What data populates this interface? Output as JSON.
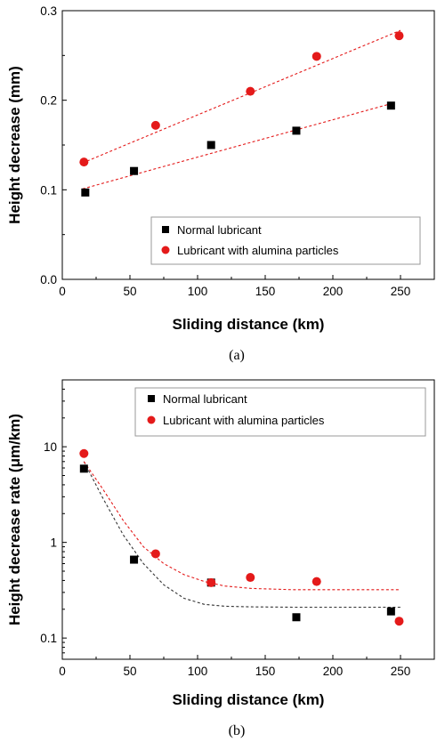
{
  "chart_data": [
    {
      "type": "scatter",
      "panel_label": "(a)",
      "xlabel": "Sliding distance (km)",
      "ylabel": "Height decrease (mm)",
      "xlim": [
        0,
        275
      ],
      "ylim": [
        0,
        0.3
      ],
      "x_ticks": [
        "0",
        "50",
        "100",
        "150",
        "200",
        "250"
      ],
      "y_ticks": [
        "0.0",
        "0.1",
        "0.2",
        "0.3"
      ],
      "y_scale": "linear",
      "grid": false,
      "legend_position": "bottom-right",
      "series": [
        {
          "name": "Normal lubricant",
          "marker": "square",
          "color": "#000000",
          "x": [
            17,
            53,
            110,
            173,
            243
          ],
          "y": [
            0.097,
            0.121,
            0.15,
            0.166,
            0.194
          ],
          "fit": {
            "x": [
              15,
              245
            ],
            "y": [
              0.101,
              0.197
            ],
            "color": "#e41a1a"
          }
        },
        {
          "name": "Lubricant with alumina particles",
          "marker": "circle",
          "color": "#e41a1a",
          "x": [
            16,
            69,
            139,
            188,
            249
          ],
          "y": [
            0.131,
            0.172,
            0.21,
            0.249,
            0.272
          ],
          "fit": {
            "x": [
              15,
              250
            ],
            "y": [
              0.13,
              0.278
            ],
            "color": "#e41a1a"
          }
        }
      ]
    },
    {
      "type": "scatter",
      "panel_label": "(b)",
      "xlabel": "Sliding distance (km)",
      "ylabel": "Height decrease rate (μm/km)",
      "xlim": [
        0,
        275
      ],
      "ylim": [
        0.06,
        50
      ],
      "x_ticks": [
        "0",
        "50",
        "100",
        "150",
        "200",
        "250"
      ],
      "y_ticks": [
        "0.1",
        "1",
        "10"
      ],
      "y_scale": "log",
      "grid": false,
      "legend_position": "top-right",
      "series": [
        {
          "name": "Normal lubricant",
          "marker": "square",
          "color": "#000000",
          "x": [
            16,
            53,
            110,
            173,
            243
          ],
          "y": [
            5.9,
            0.66,
            0.38,
            0.165,
            0.19
          ],
          "fit": {
            "x": [
              16,
              30,
              45,
              60,
              75,
              90,
              105,
              120,
              140,
              170,
              200,
              230,
              250
            ],
            "y": [
              7.0,
              2.9,
              1.2,
              0.6,
              0.36,
              0.26,
              0.225,
              0.215,
              0.212,
              0.21,
              0.21,
              0.21,
              0.21
            ],
            "color": "#333333"
          }
        },
        {
          "name": "Lubricant with alumina particles",
          "marker": "circle",
          "color": "#e41a1a",
          "x": [
            16,
            69,
            110,
            139,
            188,
            249
          ],
          "y": [
            8.5,
            0.76,
            0.38,
            0.43,
            0.39,
            0.15
          ],
          "fit": {
            "x": [
              16,
              30,
              45,
              60,
              75,
              90,
              105,
              120,
              140,
              170,
              200,
              230,
              250
            ],
            "y": [
              7.0,
              3.6,
              1.7,
              0.9,
              0.6,
              0.46,
              0.39,
              0.35,
              0.33,
              0.32,
              0.32,
              0.32,
              0.32
            ],
            "color": "#e41a1a"
          }
        }
      ]
    }
  ]
}
